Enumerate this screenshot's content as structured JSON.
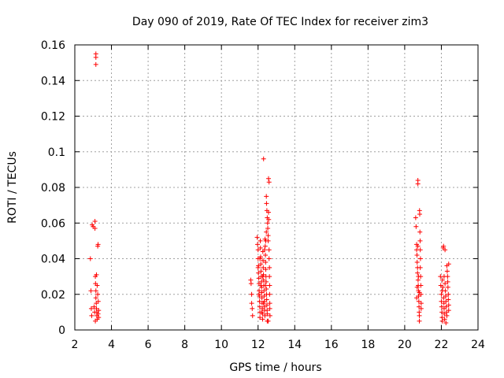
{
  "chart_data": {
    "type": "scatter",
    "title": "Day 090 of 2019, Rate Of TEC Index for receiver zim3",
    "xlabel": "GPS time / hours",
    "ylabel": "ROTI / TECUs",
    "xlim": [
      2,
      24
    ],
    "ylim": [
      0,
      0.16
    ],
    "xticks": [
      2,
      4,
      6,
      8,
      10,
      12,
      14,
      16,
      18,
      20,
      22,
      24
    ],
    "yticks": [
      0,
      0.02,
      0.04,
      0.06,
      0.08,
      0.1,
      0.12,
      0.14,
      0.16
    ],
    "xtick_labels": [
      "2",
      "4",
      "6",
      "8",
      "10",
      "12",
      "14",
      "16",
      "18",
      "20",
      "22",
      "24"
    ],
    "ytick_labels": [
      "0",
      "0.02",
      "0.04",
      "0.06",
      "0.08",
      "0.1",
      "0.12",
      "0.14",
      "0.16"
    ],
    "grid": true,
    "marker": "+",
    "series": [
      {
        "name": "ROTI",
        "color": "#ff0000",
        "points": [
          [
            2.85,
            0.04
          ],
          [
            2.88,
            0.022
          ],
          [
            2.9,
            0.012
          ],
          [
            2.92,
            0.008
          ],
          [
            2.95,
            0.059
          ],
          [
            3.0,
            0.058
          ],
          [
            3.05,
            0.013
          ],
          [
            3.08,
            0.01
          ],
          [
            3.1,
            0.061
          ],
          [
            3.1,
            0.057
          ],
          [
            3.12,
            0.03
          ],
          [
            3.13,
            0.026
          ],
          [
            3.15,
            0.022
          ],
          [
            3.15,
            0.018
          ],
          [
            3.17,
            0.015
          ],
          [
            3.18,
            0.012
          ],
          [
            3.2,
            0.01
          ],
          [
            3.2,
            0.008
          ],
          [
            3.22,
            0.006
          ],
          [
            3.22,
            0.025
          ],
          [
            3.25,
            0.02
          ],
          [
            3.25,
            0.047
          ],
          [
            3.27,
            0.048
          ],
          [
            3.27,
            0.009
          ],
          [
            3.3,
            0.011
          ],
          [
            3.3,
            0.007
          ],
          [
            3.15,
            0.155
          ],
          [
            3.15,
            0.153
          ],
          [
            3.15,
            0.149
          ],
          [
            3.18,
            0.031
          ],
          [
            3.12,
            0.005
          ],
          [
            3.28,
            0.016
          ],
          [
            11.6,
            0.028
          ],
          [
            11.62,
            0.026
          ],
          [
            11.65,
            0.02
          ],
          [
            11.65,
            0.015
          ],
          [
            11.68,
            0.012
          ],
          [
            11.7,
            0.008
          ],
          [
            11.95,
            0.052
          ],
          [
            11.97,
            0.048
          ],
          [
            12.0,
            0.045
          ],
          [
            12.0,
            0.04
          ],
          [
            12.02,
            0.036
          ],
          [
            12.02,
            0.032
          ],
          [
            12.04,
            0.029
          ],
          [
            12.05,
            0.026
          ],
          [
            12.06,
            0.022
          ],
          [
            12.07,
            0.019
          ],
          [
            12.08,
            0.016
          ],
          [
            12.09,
            0.013
          ],
          [
            12.1,
            0.01
          ],
          [
            12.1,
            0.007
          ],
          [
            12.12,
            0.05
          ],
          [
            12.13,
            0.046
          ],
          [
            12.14,
            0.041
          ],
          [
            12.15,
            0.037
          ],
          [
            12.16,
            0.033
          ],
          [
            12.17,
            0.03
          ],
          [
            12.18,
            0.027
          ],
          [
            12.19,
            0.024
          ],
          [
            12.2,
            0.021
          ],
          [
            12.21,
            0.018
          ],
          [
            12.22,
            0.015
          ],
          [
            12.23,
            0.012
          ],
          [
            12.24,
            0.009
          ],
          [
            12.25,
            0.006
          ],
          [
            12.26,
            0.044
          ],
          [
            12.27,
            0.039
          ],
          [
            12.28,
            0.035
          ],
          [
            12.29,
            0.031
          ],
          [
            12.3,
            0.028
          ],
          [
            12.31,
            0.025
          ],
          [
            12.32,
            0.022
          ],
          [
            12.33,
            0.019
          ],
          [
            12.34,
            0.016
          ],
          [
            12.35,
            0.013
          ],
          [
            12.36,
            0.011
          ],
          [
            12.37,
            0.008
          ],
          [
            12.38,
            0.051
          ],
          [
            12.39,
            0.047
          ],
          [
            12.4,
            0.042
          ],
          [
            12.41,
            0.038
          ],
          [
            12.42,
            0.034
          ],
          [
            12.43,
            0.03
          ],
          [
            12.44,
            0.027
          ],
          [
            12.45,
            0.023
          ],
          [
            12.46,
            0.02
          ],
          [
            12.47,
            0.017
          ],
          [
            12.48,
            0.014
          ],
          [
            12.49,
            0.011
          ],
          [
            12.5,
            0.009
          ],
          [
            12.5,
            0.005
          ],
          [
            12.3,
            0.096
          ],
          [
            12.45,
            0.075
          ],
          [
            12.46,
            0.071
          ],
          [
            12.48,
            0.067
          ],
          [
            12.5,
            0.063
          ],
          [
            12.52,
            0.06
          ],
          [
            12.53,
            0.057
          ],
          [
            12.55,
            0.053
          ],
          [
            12.55,
            0.05
          ],
          [
            12.57,
            0.085
          ],
          [
            12.6,
            0.083
          ],
          [
            12.57,
            0.066
          ],
          [
            12.58,
            0.062
          ],
          [
            12.6,
            0.045
          ],
          [
            12.6,
            0.04
          ],
          [
            12.62,
            0.035
          ],
          [
            12.62,
            0.03
          ],
          [
            12.63,
            0.025
          ],
          [
            12.63,
            0.02
          ],
          [
            12.64,
            0.015
          ],
          [
            12.64,
            0.012
          ],
          [
            12.65,
            0.008
          ],
          [
            12.55,
            0.005
          ],
          [
            12.45,
            0.055
          ],
          [
            12.0,
            0.035
          ],
          [
            12.05,
            0.02
          ],
          [
            12.15,
            0.025
          ],
          [
            12.25,
            0.03
          ],
          [
            12.35,
            0.045
          ],
          [
            12.42,
            0.05
          ],
          [
            12.2,
            0.01
          ],
          [
            12.3,
            0.015
          ],
          [
            12.4,
            0.025
          ],
          [
            12.1,
            0.04
          ],
          [
            20.6,
            0.063
          ],
          [
            20.62,
            0.058
          ],
          [
            20.65,
            0.048
          ],
          [
            20.65,
            0.045
          ],
          [
            20.67,
            0.042
          ],
          [
            20.68,
            0.038
          ],
          [
            20.7,
            0.035
          ],
          [
            20.7,
            0.032
          ],
          [
            20.72,
            0.084
          ],
          [
            20.72,
            0.082
          ],
          [
            20.73,
            0.028
          ],
          [
            20.74,
            0.025
          ],
          [
            20.75,
            0.022
          ],
          [
            20.76,
            0.019
          ],
          [
            20.77,
            0.016
          ],
          [
            20.78,
            0.013
          ],
          [
            20.79,
            0.01
          ],
          [
            20.8,
            0.008
          ],
          [
            20.8,
            0.005
          ],
          [
            20.81,
            0.067
          ],
          [
            20.82,
            0.065
          ],
          [
            20.83,
            0.055
          ],
          [
            20.84,
            0.05
          ],
          [
            20.85,
            0.045
          ],
          [
            20.86,
            0.04
          ],
          [
            20.87,
            0.03
          ],
          [
            20.88,
            0.025
          ],
          [
            20.89,
            0.02
          ],
          [
            20.9,
            0.015
          ],
          [
            20.9,
            0.012
          ],
          [
            20.65,
            0.018
          ],
          [
            20.68,
            0.024
          ],
          [
            20.75,
            0.03
          ],
          [
            20.85,
            0.035
          ],
          [
            20.72,
            0.047
          ],
          [
            20.8,
            0.021
          ],
          [
            21.95,
            0.03
          ],
          [
            21.97,
            0.025
          ],
          [
            22.0,
            0.02
          ],
          [
            22.0,
            0.016
          ],
          [
            22.02,
            0.013
          ],
          [
            22.03,
            0.01
          ],
          [
            22.04,
            0.007
          ],
          [
            22.05,
            0.005
          ],
          [
            22.06,
            0.028
          ],
          [
            22.08,
            0.024
          ],
          [
            22.1,
            0.046
          ],
          [
            22.12,
            0.047
          ],
          [
            22.12,
            0.018
          ],
          [
            22.14,
            0.015
          ],
          [
            22.15,
            0.012
          ],
          [
            22.16,
            0.009
          ],
          [
            22.18,
            0.006
          ],
          [
            22.2,
            0.045
          ],
          [
            22.2,
            0.026
          ],
          [
            22.22,
            0.022
          ],
          [
            22.24,
            0.019
          ],
          [
            22.25,
            0.016
          ],
          [
            22.26,
            0.013
          ],
          [
            22.28,
            0.01
          ],
          [
            22.3,
            0.008
          ],
          [
            22.3,
            0.036
          ],
          [
            22.32,
            0.033
          ],
          [
            22.34,
            0.03
          ],
          [
            22.35,
            0.027
          ],
          [
            22.36,
            0.024
          ],
          [
            22.38,
            0.02
          ],
          [
            22.38,
            0.017
          ],
          [
            22.4,
            0.014
          ],
          [
            22.4,
            0.011
          ],
          [
            22.4,
            0.037
          ],
          [
            22.05,
            0.022
          ],
          [
            22.15,
            0.03
          ],
          [
            22.25,
            0.004
          ]
        ]
      }
    ]
  }
}
